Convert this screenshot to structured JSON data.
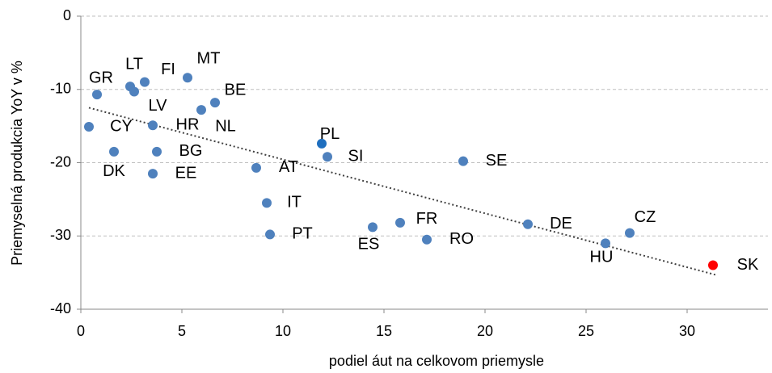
{
  "chart_data": {
    "type": "scatter",
    "x_label": "podiel áut na celkovom priemysle",
    "y_label": "Priemyselná produkcia YoY v %",
    "xlim": [
      0,
      34
    ],
    "xticks": [
      0,
      5,
      10,
      15,
      20,
      25,
      30
    ],
    "ylim": [
      -40,
      0
    ],
    "yticks": [
      -40,
      -30,
      -20,
      -10,
      0
    ],
    "grid": true,
    "points": [
      {
        "label": "GR",
        "x": 0.8,
        "y": -10.7,
        "color": "#4f81bd"
      },
      {
        "label": "LT",
        "x": 2.44,
        "y": -9.6,
        "color": "#4f81bd"
      },
      {
        "label": "LV",
        "x": 2.64,
        "y": -10.3,
        "color": "#4f81bd"
      },
      {
        "label": "FI",
        "x": 3.16,
        "y": -9.0,
        "color": "#4f81bd"
      },
      {
        "label": "MT",
        "x": 5.28,
        "y": -8.4,
        "color": "#4f81bd"
      },
      {
        "label": "BE",
        "x": 6.64,
        "y": -11.8,
        "color": "#4f81bd"
      },
      {
        "label": "NL",
        "x": 5.96,
        "y": -12.8,
        "color": "#4f81bd"
      },
      {
        "label": "HR",
        "x": 3.56,
        "y": -14.9,
        "color": "#4f81bd"
      },
      {
        "label": "CY",
        "x": 0.4,
        "y": -15.1,
        "color": "#4f81bd"
      },
      {
        "label": "DK",
        "x": 1.64,
        "y": -18.5,
        "color": "#4f81bd"
      },
      {
        "label": "BG",
        "x": 3.76,
        "y": -18.5,
        "color": "#4f81bd"
      },
      {
        "label": "EE",
        "x": 3.56,
        "y": -21.5,
        "color": "#4f81bd"
      },
      {
        "label": "AT",
        "x": 8.68,
        "y": -20.7,
        "color": "#4f81bd"
      },
      {
        "label": "PL",
        "x": 11.92,
        "y": -17.4,
        "color": "#1f6fbf"
      },
      {
        "label": "SI",
        "x": 12.2,
        "y": -19.2,
        "color": "#4f81bd"
      },
      {
        "label": "SE",
        "x": 18.92,
        "y": -19.8,
        "color": "#4f81bd"
      },
      {
        "label": "IT",
        "x": 9.2,
        "y": -25.5,
        "color": "#4f81bd"
      },
      {
        "label": "PT",
        "x": 9.36,
        "y": -29.8,
        "color": "#4f81bd"
      },
      {
        "label": "ES",
        "x": 14.44,
        "y": -28.8,
        "color": "#4f81bd"
      },
      {
        "label": "FR",
        "x": 15.8,
        "y": -28.2,
        "color": "#4f81bd"
      },
      {
        "label": "RO",
        "x": 17.12,
        "y": -30.5,
        "color": "#4f81bd"
      },
      {
        "label": "DE",
        "x": 22.12,
        "y": -28.4,
        "color": "#4f81bd"
      },
      {
        "label": "CZ",
        "x": 27.16,
        "y": -29.6,
        "color": "#4f81bd"
      },
      {
        "label": "HU",
        "x": 25.96,
        "y": -31.0,
        "color": "#4f81bd"
      },
      {
        "label": "SK",
        "x": 31.28,
        "y": -34.0,
        "color": "#ff0000"
      }
    ],
    "trendline": {
      "x": [
        0.4,
        31.4
      ],
      "y": [
        -12.5,
        -35.3
      ],
      "color": "#404040"
    }
  }
}
